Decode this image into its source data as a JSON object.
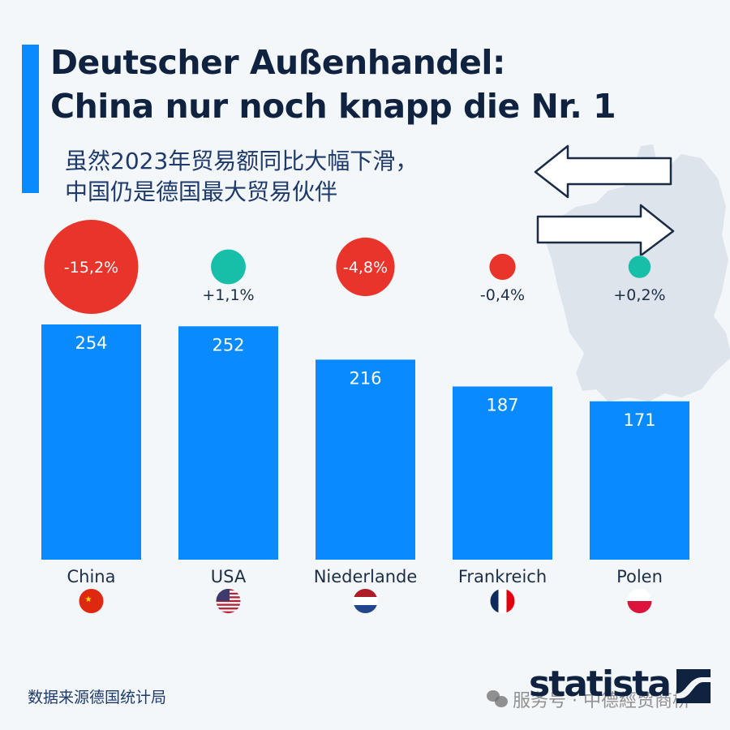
{
  "header": {
    "title_lines": [
      "Deutscher Außenhandel:",
      "China nur noch knapp die Nr. 1"
    ],
    "subtitle_lines": [
      "虽然2023年贸易额同比大幅下滑，",
      "中国仍是德国最大贸易伙伴"
    ]
  },
  "colors": {
    "bar": "#0a8aff",
    "accent": "#0a8aff",
    "negative": "#e8342a",
    "positive": "#17bfa9",
    "text_dark": "#0f2340",
    "map": "#dde4eb"
  },
  "decor": {
    "background_map": "germany-map-icon",
    "trade_arrows": "exchange-arrows-icon"
  },
  "chart_data": {
    "type": "bar",
    "title": "Deutscher Außenhandel: China nur noch knapp die Nr. 1",
    "subtitle": "虽然2023年贸易额同比大幅下滑，中国仍是德国最大贸易伙伴",
    "categories": [
      "China",
      "USA",
      "Niederlande",
      "Frankreich",
      "Polen"
    ],
    "values": [
      254,
      252,
      216,
      187,
      171
    ],
    "value_labels": [
      "254",
      "252",
      "216",
      "187",
      "171"
    ],
    "change_pct": [
      -15.2,
      1.1,
      -4.8,
      -0.4,
      0.2
    ],
    "change_labels": [
      "-15,2%",
      "+1,1%",
      "-4,8%",
      "-0,4%",
      "+0,2%"
    ],
    "flags": [
      "china-flag-icon",
      "usa-flag-icon",
      "netherlands-flag-icon",
      "france-flag-icon",
      "poland-flag-icon"
    ],
    "xlabel": "",
    "ylabel": "",
    "ylim": [
      0,
      254
    ],
    "grid": false,
    "legend": "none"
  },
  "footer": {
    "source": "数据来源德国统计局",
    "brand": "statista",
    "watermark": "服务号 · 中德經贸商桥"
  }
}
